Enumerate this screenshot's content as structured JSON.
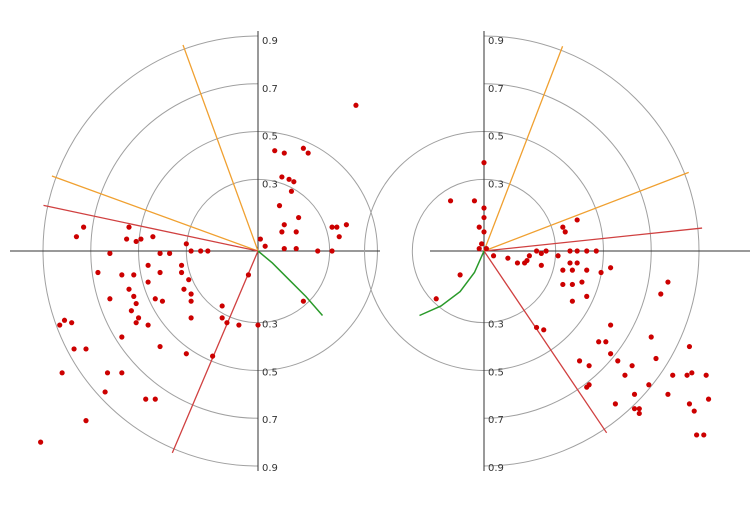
{
  "chart_data": [
    {
      "type": "polar-scatter",
      "rlim": [
        0,
        0.9
      ],
      "rticks": [
        0.3,
        0.5,
        0.7,
        0.9
      ],
      "circle_color": "#a0a0a0",
      "axis_color": "#333333",
      "points": {
        "color": "#cc0000",
        "x": [
          0.41,
          0.07,
          0.11,
          0.19,
          0.21,
          0.1,
          0.13,
          0.15,
          0.14,
          0.09,
          0.17,
          0.11,
          0.1,
          0.16,
          0.31,
          0.33,
          0.37,
          0.34,
          0.11,
          0.16,
          0.25,
          0.31,
          0.01,
          0.03,
          0.19,
          -0.04,
          0.0,
          -0.08,
          -0.19,
          -0.73,
          -0.76,
          -0.54,
          -0.51,
          -0.49,
          -0.55,
          -0.44,
          -0.41,
          -0.37,
          -0.3,
          -0.28,
          -0.24,
          -0.21,
          -0.62,
          -0.67,
          -0.57,
          -0.52,
          -0.46,
          -0.46,
          -0.41,
          -0.32,
          -0.32,
          -0.29,
          -0.31,
          -0.28,
          -0.54,
          -0.52,
          -0.62,
          -0.51,
          -0.53,
          -0.5,
          -0.51,
          -0.43,
          -0.4,
          -0.28,
          -0.28,
          -0.15,
          -0.15,
          -0.13,
          -0.46,
          -0.41,
          -0.3,
          -0.57,
          -0.83,
          -0.81,
          -0.78,
          -0.77,
          -0.72,
          -0.82,
          -0.63,
          -0.57,
          -0.64,
          -0.47,
          -0.43,
          -0.72,
          -0.91
        ],
        "y": [
          0.61,
          0.42,
          0.41,
          0.43,
          0.41,
          0.31,
          0.3,
          0.29,
          0.25,
          0.19,
          0.14,
          0.11,
          0.08,
          0.08,
          0.1,
          0.1,
          0.11,
          0.06,
          0.01,
          0.01,
          0.0,
          0.0,
          0.05,
          0.02,
          -0.21,
          -0.1,
          -0.31,
          -0.31,
          -0.44,
          0.1,
          0.06,
          0.1,
          0.04,
          0.05,
          0.05,
          0.06,
          -0.01,
          -0.01,
          0.03,
          0.0,
          0.0,
          0.0,
          -0.01,
          -0.09,
          -0.1,
          -0.1,
          -0.06,
          -0.13,
          -0.09,
          -0.06,
          -0.09,
          -0.12,
          -0.16,
          -0.18,
          -0.16,
          -0.19,
          -0.2,
          -0.22,
          -0.25,
          -0.28,
          -0.3,
          -0.2,
          -0.21,
          -0.21,
          -0.28,
          -0.23,
          -0.28,
          -0.3,
          -0.31,
          -0.4,
          -0.43,
          -0.36,
          -0.31,
          -0.29,
          -0.3,
          -0.41,
          -0.41,
          -0.51,
          -0.51,
          -0.51,
          -0.59,
          -0.62,
          -0.62,
          -0.71,
          -0.8
        ]
      },
      "rays": [
        {
          "angle": 110,
          "color": "#f0a030"
        },
        {
          "angle": 160,
          "color": "#f0a030"
        },
        {
          "angle": 168,
          "color": "#d04040"
        },
        {
          "angle": 247,
          "color": "#d04040"
        }
      ],
      "curve": {
        "color": "#2a9a2a",
        "x": [
          0,
          0.06,
          0.13,
          0.2,
          0.27
        ],
        "y": [
          0,
          -0.05,
          -0.12,
          -0.19,
          -0.27
        ]
      }
    },
    {
      "type": "polar-scatter",
      "rlim": [
        0,
        0.9
      ],
      "rticks": [
        0.3,
        0.5,
        0.7,
        0.9
      ],
      "circle_color": "#a0a0a0",
      "axis_color": "#333333",
      "points": {
        "color": "#cc0000",
        "x": [
          0.0,
          -0.14,
          -0.04,
          0.0,
          0.0,
          -0.02,
          0.0,
          -0.01,
          -0.02,
          0.01,
          -0.1,
          -0.2,
          0.39,
          0.33,
          0.34,
          0.04,
          0.1,
          0.14,
          0.18,
          0.17,
          0.22,
          0.24,
          0.19,
          0.24,
          0.26,
          0.31,
          0.36,
          0.39,
          0.43,
          0.47,
          0.36,
          0.39,
          0.33,
          0.37,
          0.33,
          0.37,
          0.41,
          0.37,
          0.43,
          0.49,
          0.53,
          0.43,
          0.22,
          0.25,
          0.74,
          0.77,
          0.53,
          0.48,
          0.51,
          0.53,
          0.4,
          0.44,
          0.44,
          0.43,
          0.56,
          0.62,
          0.59,
          0.7,
          0.72,
          0.55,
          0.63,
          0.63,
          0.65,
          0.65,
          0.69,
          0.77,
          0.79,
          0.85,
          0.86,
          0.87,
          0.93,
          0.94,
          0.86,
          0.88,
          0.89,
          0.92
        ],
        "y": [
          0.37,
          0.21,
          0.21,
          0.18,
          0.14,
          0.1,
          0.08,
          0.03,
          0.01,
          0.01,
          -0.1,
          -0.2,
          0.13,
          0.1,
          0.08,
          -0.02,
          -0.03,
          -0.05,
          -0.04,
          -0.05,
          0.0,
          -0.01,
          -0.02,
          -0.06,
          0.0,
          -0.02,
          0.0,
          0.0,
          0.0,
          0.0,
          -0.05,
          -0.05,
          -0.08,
          -0.08,
          -0.14,
          -0.14,
          -0.13,
          -0.21,
          -0.19,
          -0.09,
          -0.07,
          -0.08,
          -0.32,
          -0.33,
          -0.18,
          -0.13,
          -0.31,
          -0.38,
          -0.38,
          -0.43,
          -0.46,
          -0.48,
          -0.56,
          -0.57,
          -0.46,
          -0.48,
          -0.52,
          -0.36,
          -0.45,
          -0.64,
          -0.6,
          -0.66,
          -0.66,
          -0.68,
          -0.56,
          -0.6,
          -0.52,
          -0.52,
          -0.4,
          -0.51,
          -0.52,
          -0.62,
          -0.64,
          -0.67,
          -0.77,
          -0.77
        ]
      },
      "rays": [
        {
          "angle": 69,
          "color": "#f0a030"
        },
        {
          "angle": 21,
          "color": "#f0a030"
        },
        {
          "angle": 6,
          "color": "#d04040"
        },
        {
          "angle": 304,
          "color": "#d04040"
        }
      ],
      "curve": {
        "color": "#2a9a2a",
        "x": [
          0,
          -0.04,
          -0.1,
          -0.18,
          -0.27
        ],
        "y": [
          0,
          -0.09,
          -0.17,
          -0.23,
          -0.27
        ]
      }
    }
  ]
}
